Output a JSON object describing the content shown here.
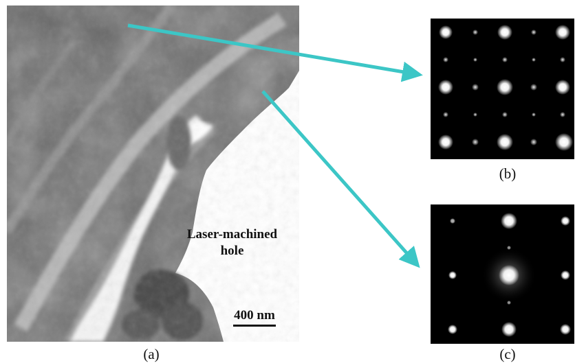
{
  "panels": {
    "a": {
      "caption": "(a)",
      "hole_label_line1": "Laser-machined",
      "hole_label_line2": "hole",
      "scale_bar_label": "400 nm"
    },
    "b": {
      "caption": "(b)"
    },
    "c": {
      "caption": "(c)"
    }
  },
  "colors": {
    "arrow": "#3cc6c6",
    "background": "#ffffff",
    "pattern_background": "#000000"
  }
}
